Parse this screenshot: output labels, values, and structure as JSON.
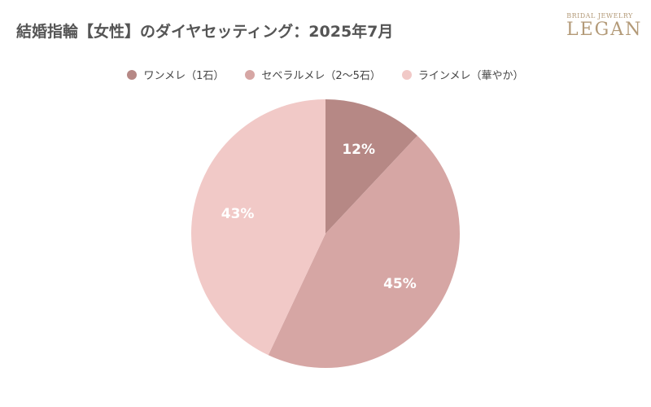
{
  "chart_data": {
    "type": "pie",
    "title": "結婚指輪【女性】のダイヤセッティング：2025年7月",
    "categories": [
      "ワンメレ（1石）",
      "セベラルメレ（2〜5石）",
      "ラインメレ（華やか）"
    ],
    "values": [
      12,
      45,
      43
    ],
    "labels": [
      "12%",
      "45%",
      "43%"
    ],
    "colors": [
      "#b68885",
      "#d6a6a4",
      "#f1c9c7"
    ],
    "legend_position": "top"
  },
  "brand": {
    "sub": "BRIDAL JEWELRY",
    "name": "LEGAN"
  }
}
